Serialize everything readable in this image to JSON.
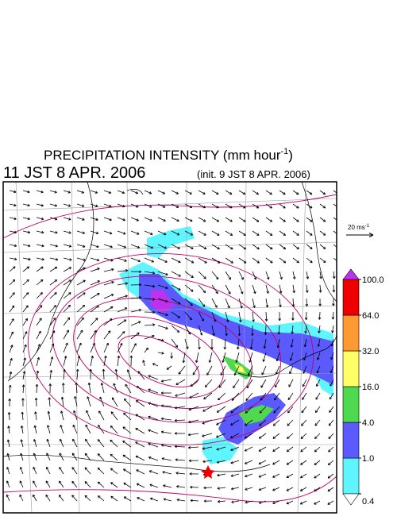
{
  "header": {
    "title": "PRECIPITATION INTENSITY (mm hour",
    "title_superscript": "-1",
    "title_close": ")",
    "valid_time": "11 JST 8 APR. 2006",
    "init_time": "(init. 9 JST 8 APR. 2006)"
  },
  "reference_vector": {
    "label": "20 ms",
    "label_superscript": "-1"
  },
  "colorbar": {
    "ticks": [
      {
        "value": 0.4,
        "label": "0.4"
      },
      {
        "value": 1,
        "label": "1.0"
      },
      {
        "value": 4,
        "label": "4.0"
      },
      {
        "value": 16,
        "label": "16.0"
      },
      {
        "value": 32,
        "label": "32.0"
      },
      {
        "value": 64,
        "label": "64.0"
      },
      {
        "value": 100,
        "label": "100.0"
      }
    ],
    "colors": [
      "#5ff5ff",
      "#5a5aff",
      "#4ed94e",
      "#ffff66",
      "#ff9a33",
      "#ee0000"
    ],
    "under_color": "#ffffff",
    "over_color": "#bb33ee"
  }
}
